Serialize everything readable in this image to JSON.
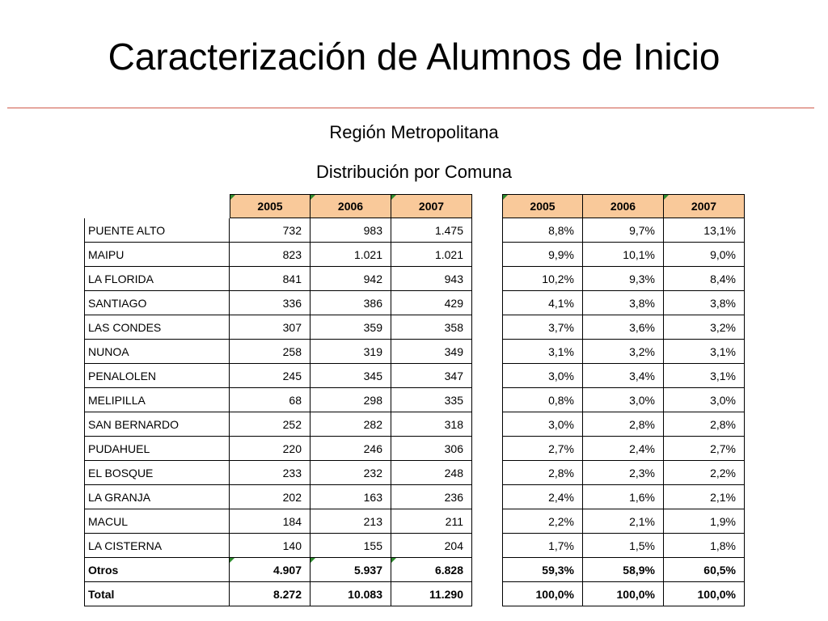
{
  "title": "Caracterización de Alumnos de Inicio",
  "subtitle1": "Región Metropolitana",
  "subtitle2": "Distribución por Comuna",
  "colors": {
    "header_bg": "#f9c99a",
    "rule": "#d05a4a",
    "marker": "#2e8b2e"
  },
  "table": {
    "years": [
      "2005",
      "2006",
      "2007"
    ],
    "rows": [
      {
        "name": "PUENTE ALTO",
        "counts": [
          "732",
          "983",
          "1.475"
        ],
        "pcts": [
          "8,8%",
          "9,7%",
          "13,1%"
        ]
      },
      {
        "name": "MAIPU",
        "counts": [
          "823",
          "1.021",
          "1.021"
        ],
        "pcts": [
          "9,9%",
          "10,1%",
          "9,0%"
        ]
      },
      {
        "name": "LA FLORIDA",
        "counts": [
          "841",
          "942",
          "943"
        ],
        "pcts": [
          "10,2%",
          "9,3%",
          "8,4%"
        ]
      },
      {
        "name": "SANTIAGO",
        "counts": [
          "336",
          "386",
          "429"
        ],
        "pcts": [
          "4,1%",
          "3,8%",
          "3,8%"
        ]
      },
      {
        "name": "LAS CONDES",
        "counts": [
          "307",
          "359",
          "358"
        ],
        "pcts": [
          "3,7%",
          "3,6%",
          "3,2%"
        ]
      },
      {
        "name": "NUNOA",
        "counts": [
          "258",
          "319",
          "349"
        ],
        "pcts": [
          "3,1%",
          "3,2%",
          "3,1%"
        ]
      },
      {
        "name": "PENALOLEN",
        "counts": [
          "245",
          "345",
          "347"
        ],
        "pcts": [
          "3,0%",
          "3,4%",
          "3,1%"
        ]
      },
      {
        "name": "MELIPILLA",
        "counts": [
          "68",
          "298",
          "335"
        ],
        "pcts": [
          "0,8%",
          "3,0%",
          "3,0%"
        ]
      },
      {
        "name": "SAN BERNARDO",
        "counts": [
          "252",
          "282",
          "318"
        ],
        "pcts": [
          "3,0%",
          "2,8%",
          "2,8%"
        ]
      },
      {
        "name": "PUDAHUEL",
        "counts": [
          "220",
          "246",
          "306"
        ],
        "pcts": [
          "2,7%",
          "2,4%",
          "2,7%"
        ]
      },
      {
        "name": "EL BOSQUE",
        "counts": [
          "233",
          "232",
          "248"
        ],
        "pcts": [
          "2,8%",
          "2,3%",
          "2,2%"
        ]
      },
      {
        "name": "LA GRANJA",
        "counts": [
          "202",
          "163",
          "236"
        ],
        "pcts": [
          "2,4%",
          "1,6%",
          "2,1%"
        ]
      },
      {
        "name": "MACUL",
        "counts": [
          "184",
          "213",
          "211"
        ],
        "pcts": [
          "2,2%",
          "2,1%",
          "1,9%"
        ]
      },
      {
        "name": "LA CISTERNA",
        "counts": [
          "140",
          "155",
          "204"
        ],
        "pcts": [
          "1,7%",
          "1,5%",
          "1,8%"
        ]
      },
      {
        "name": "Otros",
        "counts": [
          "4.907",
          "5.937",
          "6.828"
        ],
        "pcts": [
          "59,3%",
          "58,9%",
          "60,5%"
        ],
        "bold": true
      },
      {
        "name": "Total",
        "counts": [
          "8.272",
          "10.083",
          "11.290"
        ],
        "pcts": [
          "100,0%",
          "100,0%",
          "100,0%"
        ],
        "bold": true
      }
    ]
  }
}
